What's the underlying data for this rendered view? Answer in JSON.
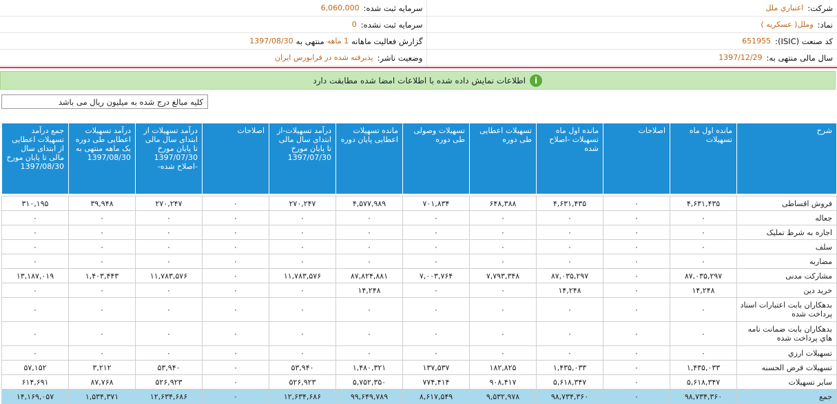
{
  "info": {
    "right": [
      {
        "label": "شرکت:",
        "value": "اعتباري ملل"
      },
      {
        "label": "نماد:",
        "value": "وملل( عسکريه )"
      },
      {
        "label": "کد صنعت (ISIC):",
        "value": "651955"
      },
      {
        "label": "سال مالی منتهی به:",
        "value": "1397/12/29"
      }
    ],
    "left": [
      {
        "label": "سرمایه ثبت شده:",
        "value": "6,060,000"
      },
      {
        "label": "سرمایه ثبت نشده:",
        "value": "0"
      }
    ],
    "report": {
      "label": "گزارش فعالیت ماهانه",
      "period": "1 ماهه",
      "label2": "منتهی به",
      "value": "1397/08/30"
    },
    "status": {
      "label": "وضعیت ناشر:",
      "value": "پذیرفته شده در فرابورس ایران"
    }
  },
  "banner": "اطلاعات نمایش داده شده با اطلاعات امضا شده مطابقت دارد",
  "note": "کلیه مبالغ درج شده به میلیون ریال می باشد",
  "table": {
    "headers": [
      "شرح",
      "مانده اول ماه تسهیلات",
      "اصلاحات",
      "مانده اول ماه تسهیلات -اصلاح شده",
      "تسهیلات اعطایی طی دوره",
      "تسهیلات وصولی طی دوره",
      "مانده تسهیلات اعطایی پایان دوره",
      "درآمد تسهیلات-از ابتدای سال مالی تا پایان مورخ 1397/07/30",
      "اصلاحات",
      "درآمد تسهیلات از ابتدای سال مالی تا پایان مورخ 1397/07/30 -اصلاح شده-",
      "درآمد تسهیلات اعطایی طی دوره یک ماهه منتهی به 1397/08/30",
      "جمع درآمد تسهیلات اعطایی از ابتدای سال مالی تا پایان مورخ 1397/08/30"
    ],
    "rows": [
      [
        "فروش اقساطی",
        "۴,۶۳۱,۴۳۵",
        "۰",
        "۴,۶۳۱,۴۳۵",
        "۶۴۸,۳۸۸",
        "۷۰۱,۸۳۴",
        "۴,۵۷۷,۹۸۹",
        "۲۷۰,۲۴۷",
        "۰",
        "۲۷۰,۲۴۷",
        "۳۹,۹۴۸",
        "۳۱۰,۱۹۵"
      ],
      [
        "جعاله",
        "۰",
        "۰",
        "۰",
        "۰",
        "۰",
        "۰",
        "۰",
        "۰",
        "۰",
        "۰",
        "۰"
      ],
      [
        "اجاره به شرط تملیک",
        "۰",
        "۰",
        "۰",
        "۰",
        "۰",
        "۰",
        "۰",
        "۰",
        "۰",
        "۰",
        "۰"
      ],
      [
        "سلف",
        "۰",
        "۰",
        "۰",
        "۰",
        "۰",
        "۰",
        "۰",
        "۰",
        "۰",
        "۰",
        "۰"
      ],
      [
        "مضاربه",
        "۰",
        "۰",
        "۰",
        "۰",
        "۰",
        "۰",
        "۰",
        "۰",
        "۰",
        "۰",
        "۰"
      ],
      [
        "مشارکت مدنی",
        "۸۷,۰۳۵,۲۹۷",
        "۰",
        "۸۷,۰۳۵,۲۹۷",
        "۷,۷۹۳,۳۴۸",
        "۷,۰۰۳,۷۶۴",
        "۸۷,۸۲۴,۸۸۱",
        "۱۱,۷۸۳,۵۷۶",
        "۰",
        "۱۱,۷۸۳,۵۷۶",
        "۱,۴۰۳,۴۴۳",
        "۱۳,۱۸۷,۰۱۹"
      ],
      [
        "خرید دین",
        "۱۴,۲۴۸",
        "۰",
        "۱۴,۲۴۸",
        "۰",
        "۰",
        "۱۴,۲۴۸",
        "۰",
        "۰",
        "۰",
        "۰",
        "۰"
      ],
      [
        "بدهکاران بابت اعتبارات اسناد پرداخت شده",
        "۰",
        "۰",
        "۰",
        "۰",
        "۰",
        "۰",
        "۰",
        "۰",
        "۰",
        "۰",
        "۰"
      ],
      [
        "بدهکاران بابت ضمانت نامه هاي پرداخت شده",
        "۰",
        "۰",
        "۰",
        "۰",
        "۰",
        "۰",
        "۰",
        "۰",
        "۰",
        "۰",
        "۰"
      ],
      [
        "تسهیلات ارزي",
        "۰",
        "۰",
        "۰",
        "۰",
        "۰",
        "۰",
        "۰",
        "۰",
        "۰",
        "۰",
        "۰"
      ],
      [
        "تسهیلات قرض الحسنه",
        "۱,۴۳۵,۰۳۳",
        "۰",
        "۱,۴۳۵,۰۳۳",
        "۱۸۲,۸۲۵",
        "۱۳۷,۵۳۷",
        "۱,۴۸۰,۳۲۱",
        "۵۳,۹۴۰",
        "۰",
        "۵۳,۹۴۰",
        "۳,۲۱۲",
        "۵۷,۱۵۲"
      ],
      [
        "سایر تسهیلات",
        "۵,۶۱۸,۳۴۷",
        "۰",
        "۵,۶۱۸,۳۴۷",
        "۹۰۸,۴۱۷",
        "۷۷۴,۴۱۴",
        "۵,۷۵۲,۳۵۰",
        "۵۲۶,۹۲۳",
        "۰",
        "۵۲۶,۹۲۳",
        "۸۷,۷۶۸",
        "۶۱۴,۶۹۱"
      ],
      [
        "جمع",
        "۹۸,۷۳۴,۳۶۰",
        "۰",
        "۹۸,۷۳۴,۳۶۰",
        "۹,۵۳۲,۹۷۸",
        "۸,۶۱۷,۵۴۹",
        "۹۹,۶۴۹,۷۸۹",
        "۱۲,۶۳۴,۶۸۶",
        "۰",
        "۱۲,۶۳۴,۶۸۶",
        "۱,۵۳۴,۳۷۱",
        "۱۴,۱۶۹,۰۵۷"
      ]
    ]
  }
}
